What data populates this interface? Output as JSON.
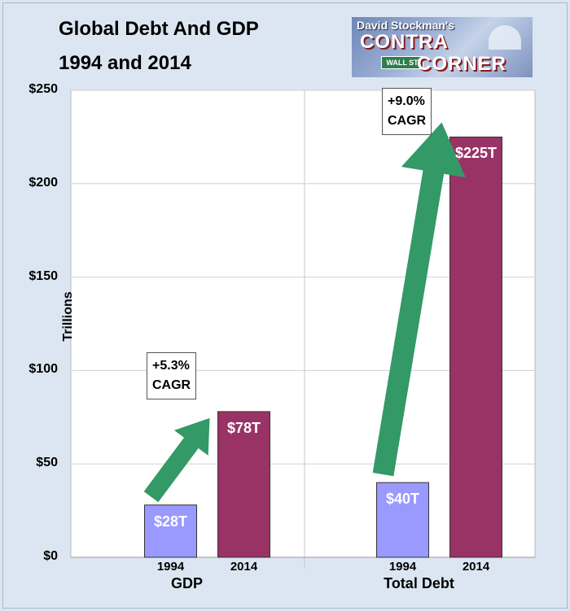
{
  "title_line1": "Global Debt And GDP",
  "title_line2": "1994 and 2014",
  "logo": {
    "line1": "David Stockman's",
    "line2": "CONTRA",
    "line3": "CORNER",
    "sign": "WALL ST"
  },
  "colors": {
    "bar_1994": "#9999ff",
    "bar_2014": "#993366",
    "arrow": "#339966",
    "plot_bg": "#ffffff",
    "grid": "#d0d0d0"
  },
  "chart_data": {
    "type": "bar",
    "ylabel": "Trillions",
    "ylim": [
      0,
      250
    ],
    "yticks": [
      "$0",
      "$50",
      "$100",
      "$150",
      "$200",
      "$250"
    ],
    "groups": [
      {
        "name": "GDP",
        "categories": [
          "1994",
          "2014"
        ],
        "values": [
          28,
          78
        ],
        "labels": [
          "$28T",
          "$78T"
        ],
        "cagr": [
          "+5.3%",
          "CAGR"
        ]
      },
      {
        "name": "Total Debt",
        "categories": [
          "1994",
          "2014"
        ],
        "values": [
          40,
          225
        ],
        "labels": [
          "$40T",
          "$225T"
        ],
        "cagr": [
          "+9.0%",
          "CAGR"
        ]
      }
    ],
    "grid": true
  }
}
